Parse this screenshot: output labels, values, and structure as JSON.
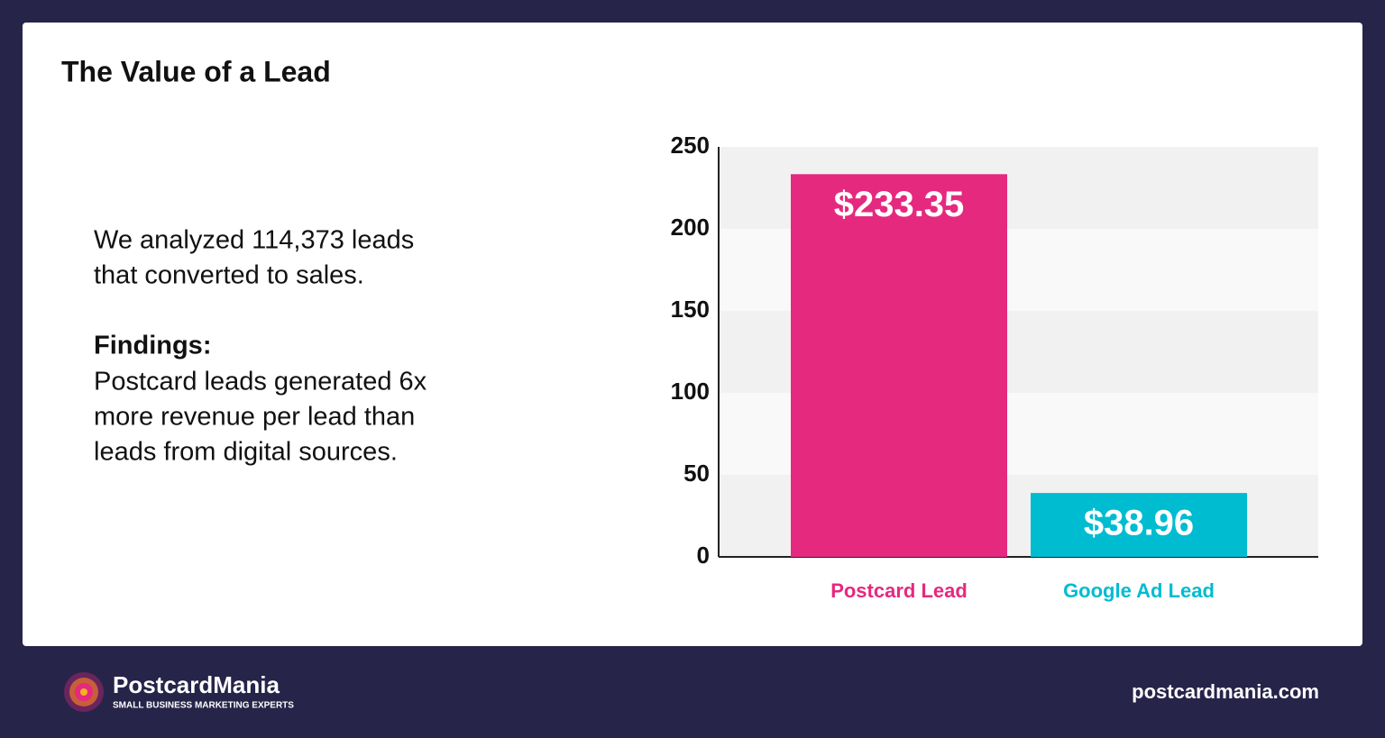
{
  "chart_data": {
    "type": "bar",
    "title": "The Value of a Lead",
    "categories": [
      "Postcard Lead",
      "Google Ad Lead"
    ],
    "values": [
      233.35,
      38.96
    ],
    "value_labels": [
      "$233.35",
      "$38.96"
    ],
    "colors": [
      "#e5297f",
      "#00bcd0"
    ],
    "ylim": [
      0,
      250
    ],
    "yticks": [
      0,
      50,
      100,
      150,
      200,
      250
    ],
    "grid": true
  },
  "text": {
    "intro": [
      "We analyzed 114,373 leads",
      "that converted to sales."
    ],
    "findings_heading": "Findings:",
    "findings": [
      "Postcard leads generated 6x",
      "more revenue per lead than",
      "leads from digital sources."
    ]
  },
  "footer": {
    "brand": "PostcardMania",
    "tagline": "SMALL BUSINESS MARKETING EXPERTS",
    "url": "postcardmania.com"
  }
}
